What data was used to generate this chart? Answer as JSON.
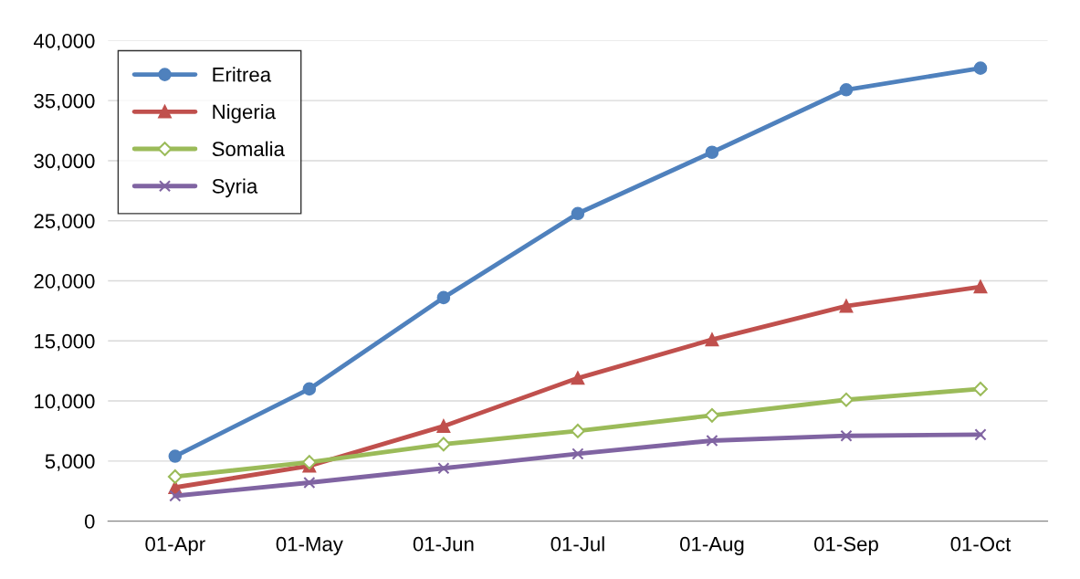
{
  "chart_data": {
    "type": "line",
    "categories": [
      "01-Apr",
      "01-May",
      "01-Jun",
      "01-Jul",
      "01-Aug",
      "01-Sep",
      "01-Oct"
    ],
    "series": [
      {
        "name": "Eritrea",
        "color": "#4f81bd",
        "marker": "circle",
        "values": [
          5400,
          11000,
          18600,
          25600,
          30700,
          35900,
          37700
        ]
      },
      {
        "name": "Nigeria",
        "color": "#c0504d",
        "marker": "triangle",
        "values": [
          2800,
          4600,
          7900,
          11900,
          15100,
          17900,
          19500
        ]
      },
      {
        "name": "Somalia",
        "color": "#9bbb59",
        "marker": "diamond",
        "values": [
          3700,
          4900,
          6400,
          7500,
          8800,
          10100,
          11000
        ]
      },
      {
        "name": "Syria",
        "color": "#8064a2",
        "marker": "cross",
        "values": [
          2100,
          3200,
          4400,
          5600,
          6700,
          7100,
          7200
        ]
      }
    ],
    "ylim": [
      0,
      40000
    ],
    "yticks": [
      {
        "value": 0,
        "label": "0"
      },
      {
        "value": 5000,
        "label": "5,000"
      },
      {
        "value": 10000,
        "label": "10,000"
      },
      {
        "value": 15000,
        "label": "15,000"
      },
      {
        "value": 20000,
        "label": "20,000"
      },
      {
        "value": 25000,
        "label": "25,000"
      },
      {
        "value": 30000,
        "label": "30,000"
      },
      {
        "value": 35000,
        "label": "35,000"
      },
      {
        "value": 40000,
        "label": "40,000"
      }
    ],
    "grid": "y",
    "legend": "top left",
    "line_style": "solid"
  }
}
